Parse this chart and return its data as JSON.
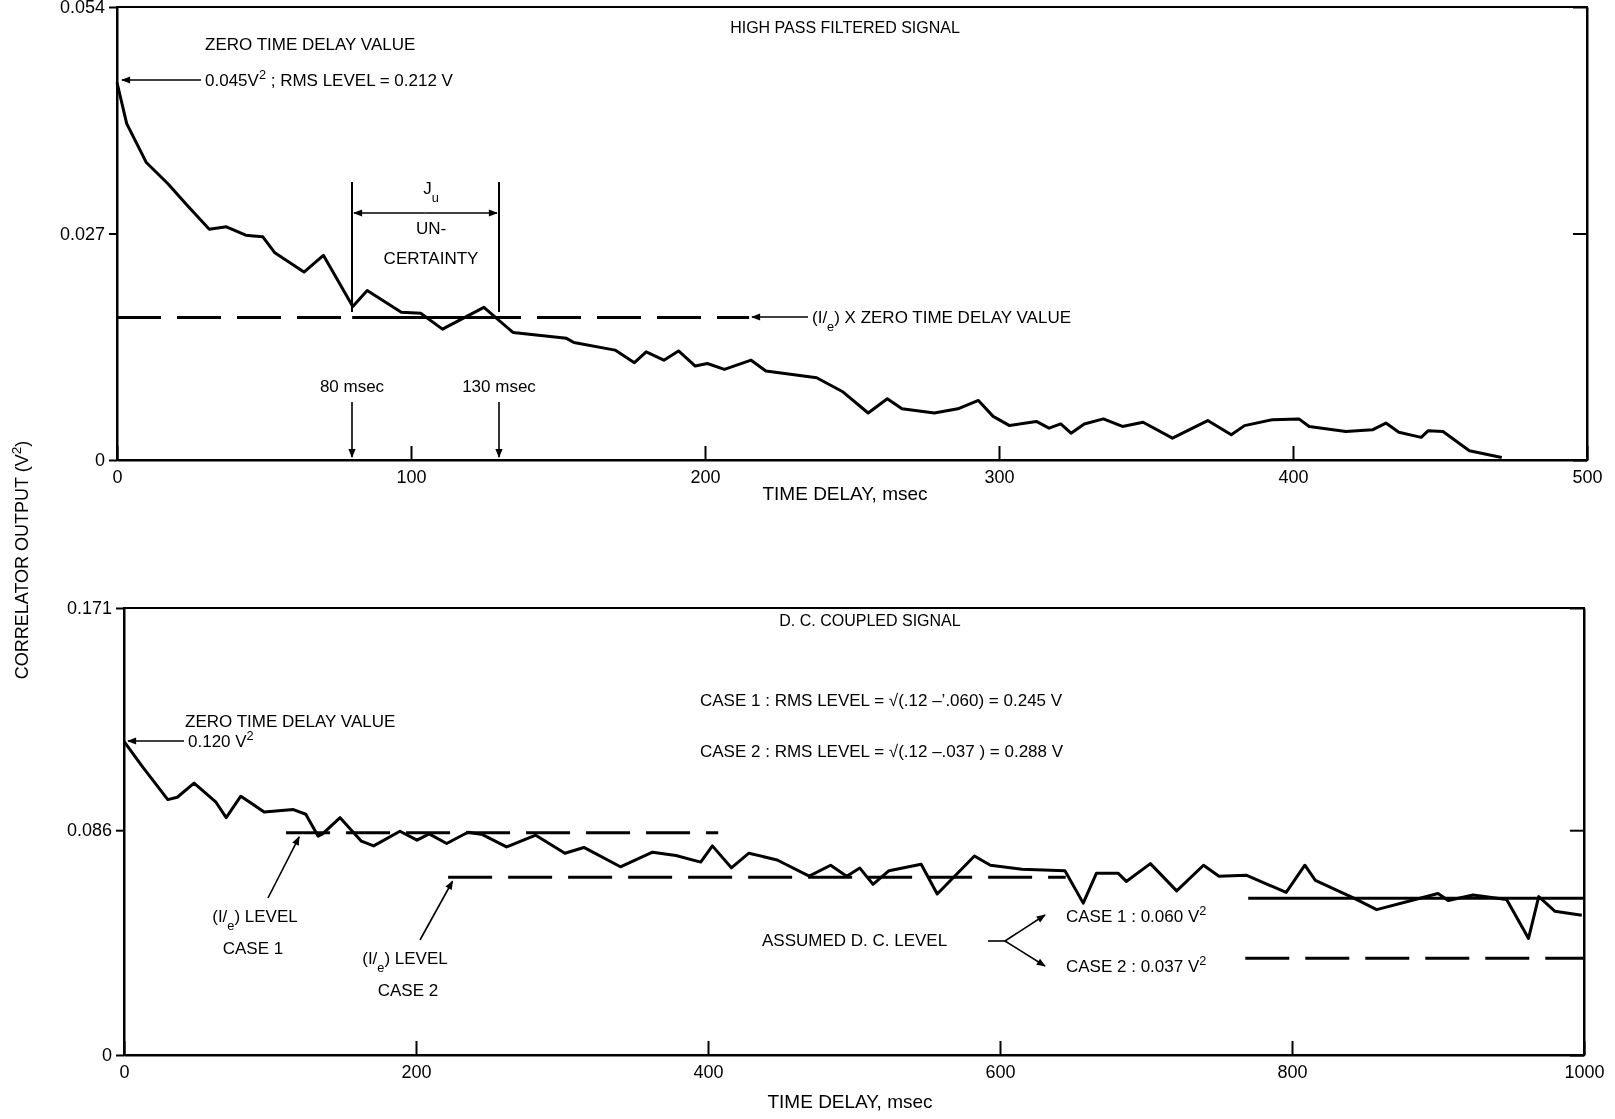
{
  "chart_data": [
    {
      "type": "line",
      "title": "HIGH PASS FILTERED SIGNAL",
      "xlabel": "TIME DELAY, msec",
      "ylabel": "CORRELATOR OUTPUT (V$^{2}$)",
      "xlim": [
        0,
        500
      ],
      "xticks": [
        0,
        100,
        200,
        300,
        400,
        500
      ],
      "ylim": [
        0,
        0.054
      ],
      "yticks": [
        0,
        0.027,
        0.054
      ],
      "series": [
        {
          "color": "#000000",
          "line_style": "solid",
          "x": [
            0,
            3.3,
            9.9,
            17.4,
            24,
            31.4,
            37.2,
            43.8,
            49.6,
            53.7,
            63.6,
            70.2,
            80.2,
            85.1,
            96.7,
            103.3,
            110.7,
            124.8,
            134.7,
            152.9,
            155.4,
            169.4,
            176,
            180,
            186,
            191,
            196.7,
            200.8,
            206.6,
            215.7,
            220.7,
            238,
            247,
            255.5,
            262,
            267,
            278,
            286,
            293,
            298,
            303.6,
            312.7,
            317,
            321,
            324.5,
            329,
            335.5,
            342,
            349,
            359,
            371,
            379,
            383.5,
            393,
            402,
            405.5,
            418,
            427,
            431.6,
            436,
            443.6,
            446,
            451,
            460,
            471
          ],
          "values": [
            0.045,
            0.0401,
            0.0355,
            0.0329,
            0.0303,
            0.0275,
            0.0278,
            0.0268,
            0.0266,
            0.0247,
            0.0224,
            0.0244,
            0.0183,
            0.0202,
            0.0176,
            0.0175,
            0.0156,
            0.0182,
            0.0152,
            0.0145,
            0.014,
            0.0131,
            0.0116,
            0.0129,
            0.0119,
            0.013,
            0.0112,
            0.0115,
            0.0108,
            0.0119,
            0.0106,
            0.0098,
            0.0081,
            0.0056,
            0.0073,
            0.0061,
            0.0056,
            0.0061,
            0.0071,
            0.0052,
            0.0041,
            0.0046,
            0.0038,
            0.0043,
            0.0032,
            0.0043,
            0.0049,
            0.004,
            0.0045,
            0.0026,
            0.0047,
            0.003,
            0.0041,
            0.0048,
            0.0049,
            0.004,
            0.0034,
            0.0036,
            0.0044,
            0.0033,
            0.0027,
            0.0035,
            0.0034,
            0.0011,
            0.0003
          ]
        },
        {
          "color": "#000000",
          "line_style": "dashed",
          "x": [
            0,
            215
          ],
          "values": [
            0.017,
            0.017
          ]
        },
        {
          "color": "#000000",
          "line_style": "solid",
          "x": [
            80,
            130
          ],
          "values": [
            0.017,
            0.017
          ]
        }
      ],
      "annotations": [
        "ZERO TIME DELAY VALUE",
        "0.045V$^{2}$ ; RMS LEVEL = 0.212 V",
        "80  msec",
        "130  msec",
        "J$_{u}$",
        "UN- CERTAINTY",
        "(I/$_{e}$) X ZERO TIME DELAY VALUE"
      ]
    },
    {
      "type": "line",
      "title": "D. C. COUPLED SIGNAL",
      "xlabel": "TIME DELAY, msec",
      "xlim": [
        0,
        1000
      ],
      "xticks": [
        0,
        200,
        400,
        600,
        800,
        1000
      ],
      "ylim": [
        0,
        0.171
      ],
      "yticks": [
        0,
        0.086,
        0.171
      ],
      "series": [
        {
          "color": "#000000",
          "line_style": "solid",
          "x": [
            0,
            13,
            30,
            36.5,
            48,
            63,
            70,
            80,
            96,
            116,
            124.5,
            133,
            136,
            148,
            162.6,
            171,
            189,
            200.7,
            209,
            221,
            235.6,
            245.5,
            262,
            282,
            302,
            315,
            340,
            362,
            378,
            395,
            403,
            416,
            428,
            447.4,
            469.3,
            484,
            495,
            504,
            513,
            524,
            546,
            557,
            582.5,
            593.4,
            615,
            644.5,
            657,
            666,
            681,
            686.5,
            703,
            721,
            739.4,
            750,
            768.6,
            796,
            808.8,
            816,
            842,
            858,
            881.8,
            900,
            907,
            924,
            947,
            962,
            969,
            980,
            998.5
          ],
          "values": [
            0.12,
            0.11,
            0.0977,
            0.0986,
            0.104,
            0.0967,
            0.0908,
            0.099,
            0.093,
            0.0939,
            0.0921,
            0.0837,
            0.0846,
            0.0908,
            0.0818,
            0.08,
            0.0856,
            0.0822,
            0.0846,
            0.0809,
            0.0852,
            0.0843,
            0.0796,
            0.0841,
            0.0772,
            0.0794,
            0.072,
            0.0776,
            0.0763,
            0.0738,
            0.08,
            0.0716,
            0.0772,
            0.0746,
            0.0684,
            0.0726,
            0.0684,
            0.0715,
            0.0653,
            0.0705,
            0.073,
            0.0616,
            0.0761,
            0.0726,
            0.0711,
            0.0705,
            0.0581,
            0.0695,
            0.0695,
            0.0664,
            0.0732,
            0.0628,
            0.0726,
            0.0684,
            0.0688,
            0.0622,
            0.0726,
            0.0668,
            0.0601,
            0.0556,
            0.0591,
            0.0618,
            0.0591,
            0.0612,
            0.0595,
            0.0446,
            0.0606,
            0.055,
            0.0535
          ]
        },
        {
          "color": "#000000",
          "line_style": "dashed",
          "x": [
            111,
            407
          ],
          "values": [
            0.085,
            0.085
          ]
        },
        {
          "color": "#000000",
          "line_style": "dashed",
          "x": [
            222,
            645
          ],
          "values": [
            0.068,
            0.068
          ]
        },
        {
          "color": "#000000",
          "line_style": "solid",
          "x": [
            770,
            1000
          ],
          "values": [
            0.06,
            0.06
          ]
        },
        {
          "color": "#000000",
          "line_style": "dashed",
          "x": [
            768,
            1000
          ],
          "values": [
            0.037,
            0.037
          ]
        }
      ],
      "annotations": [
        "ZERO TIME DELAY VALUE",
        "0.120 V$^{2}$",
        "CASE 1 : RMS LEVEL = √(.12 –’.060) = 0.245 V",
        "CASE 2 : RMS LEVEL = √(.12 –.037 ) = 0.288 V",
        {
          "text": "(I/$_{e}$) LEVEL",
          "x": 120,
          "y": 0.085
        },
        "CASE 1",
        {
          "text": "(I/$_{e}$) LEVEL",
          "x": 225,
          "y": 0.068
        },
        "CASE 2",
        "ASSUMED D. C. LEVEL",
        "CASE 1 : 0.060 V$^{2}$",
        "CASE 2 : 0.037 V$^{2}$"
      ]
    }
  ]
}
